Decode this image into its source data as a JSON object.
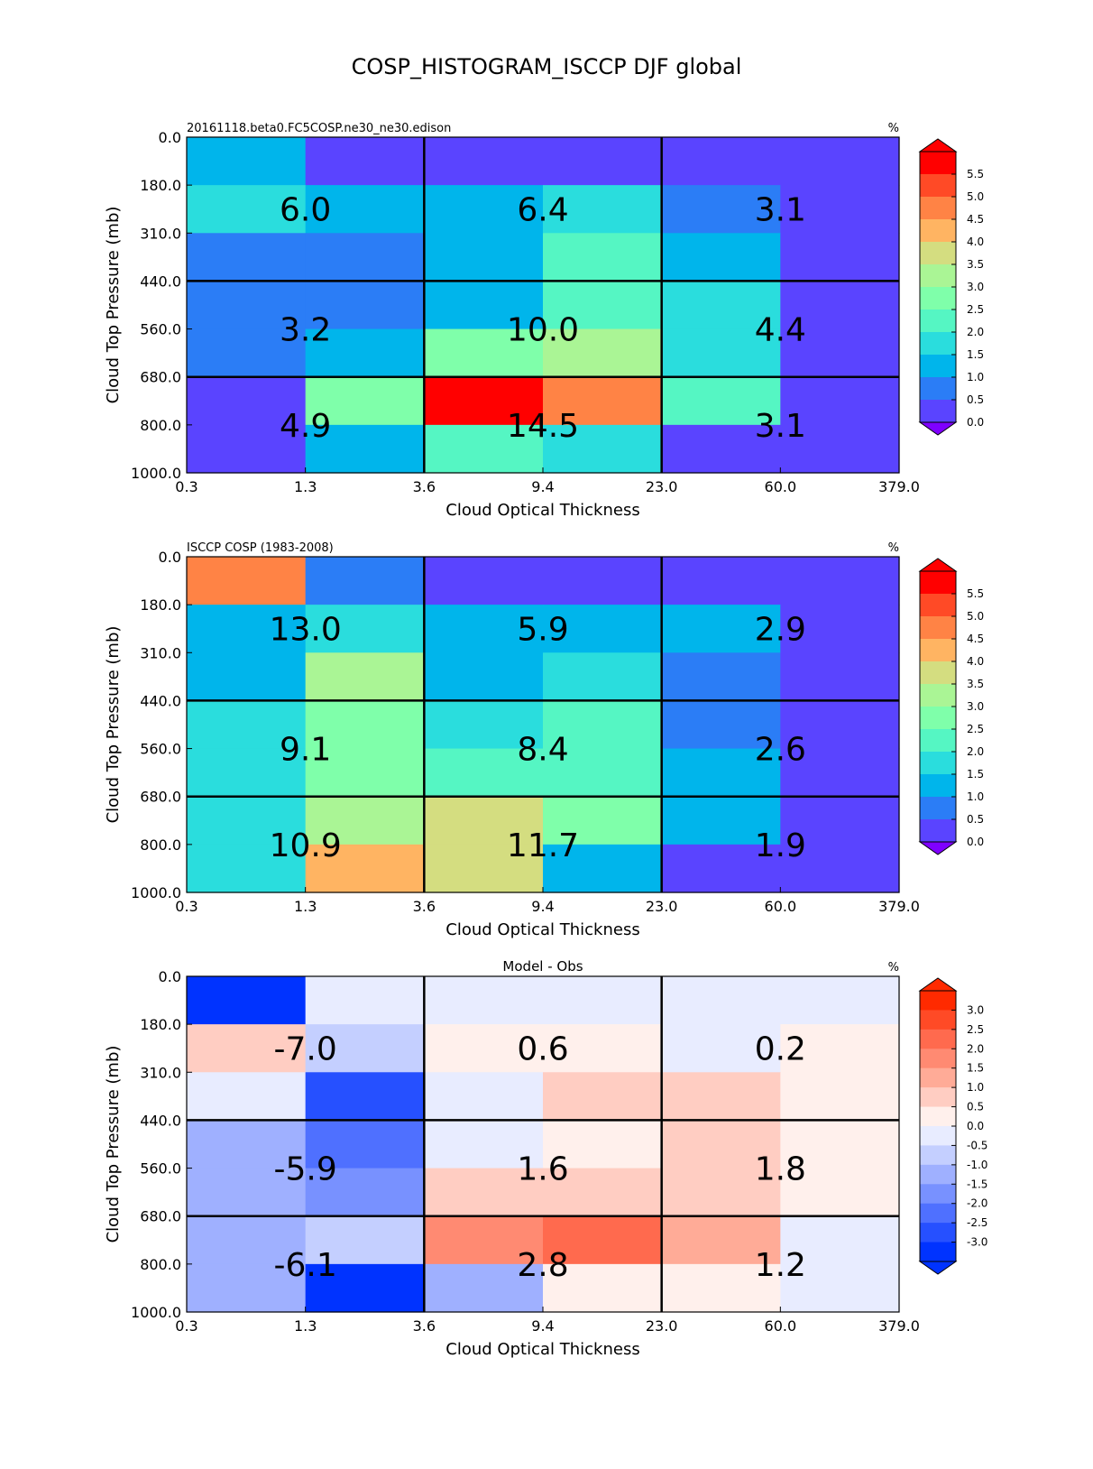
{
  "figure": {
    "title": "COSP_HISTOGRAM_ISCCP DJF global"
  },
  "chart_data": [
    {
      "type": "heatmap",
      "title_left": "20161118.beta0.FC5COSP.ne30_ne30.edison",
      "title_center": "",
      "units": "%",
      "xlabel": "Cloud Optical Thickness",
      "ylabel": "Cloud Top Pressure (mb)",
      "x_ticks": [
        "0.3",
        "1.3",
        "3.6",
        "9.4",
        "23.0",
        "60.0",
        "379.0"
      ],
      "y_ticks": [
        "0.0",
        "180.0",
        "310.0",
        "440.0",
        "560.0",
        "680.0",
        "800.0",
        "1000.0"
      ],
      "colorbar": {
        "ticks": [
          "5.5",
          "5.0",
          "4.5",
          "4.0",
          "3.5",
          "3.0",
          "2.5",
          "2.0",
          "1.5",
          "1.0",
          "0.5",
          "0.0"
        ],
        "colors_top_to_bottom": [
          "#ff0000",
          "#ff4a26",
          "#ff8345",
          "#ffb462",
          "#d4dd80",
          "#aaf595",
          "#7fffaa",
          "#55f6c3",
          "#2adddd",
          "#00b5eb",
          "#2b7df6",
          "#5a44ff"
        ],
        "over_color": "#ff0000",
        "under_color": "#7f00ff"
      },
      "cells": [
        [
          "#00b5eb",
          "#5a44ff",
          "#5a44ff",
          "#5a44ff",
          "#5a44ff",
          "#5a44ff"
        ],
        [
          "#2adddd",
          "#00b5eb",
          "#00b5eb",
          "#2adddd",
          "#2b7df6",
          "#5a44ff"
        ],
        [
          "#2b7df6",
          "#2b7df6",
          "#00b5eb",
          "#55f6c3",
          "#00b5eb",
          "#5a44ff"
        ],
        [
          "#2b7df6",
          "#2b7df6",
          "#00b5eb",
          "#55f6c3",
          "#2adddd",
          "#5a44ff"
        ],
        [
          "#2b7df6",
          "#00b5eb",
          "#7fffaa",
          "#aaf595",
          "#2adddd",
          "#5a44ff"
        ],
        [
          "#5a44ff",
          "#7fffaa",
          "#ff0000",
          "#ff8345",
          "#55f6c3",
          "#5a44ff"
        ],
        [
          "#5a44ff",
          "#00b5eb",
          "#55f6c3",
          "#2adddd",
          "#5a44ff",
          "#5a44ff"
        ]
      ],
      "annotations": [
        [
          "6.0",
          "6.4",
          "3.1"
        ],
        [
          "3.2",
          "10.0",
          "4.4"
        ],
        [
          "4.9",
          "14.5",
          "3.1"
        ]
      ]
    },
    {
      "type": "heatmap",
      "title_left": "ISCCP COSP (1983-2008)",
      "title_center": "",
      "units": "%",
      "xlabel": "Cloud Optical Thickness",
      "ylabel": "Cloud Top Pressure (mb)",
      "x_ticks": [
        "0.3",
        "1.3",
        "3.6",
        "9.4",
        "23.0",
        "60.0",
        "379.0"
      ],
      "y_ticks": [
        "0.0",
        "180.0",
        "310.0",
        "440.0",
        "560.0",
        "680.0",
        "800.0",
        "1000.0"
      ],
      "colorbar": {
        "ticks": [
          "5.5",
          "5.0",
          "4.5",
          "4.0",
          "3.5",
          "3.0",
          "2.5",
          "2.0",
          "1.5",
          "1.0",
          "0.5",
          "0.0"
        ],
        "colors_top_to_bottom": [
          "#ff0000",
          "#ff4a26",
          "#ff8345",
          "#ffb462",
          "#d4dd80",
          "#aaf595",
          "#7fffaa",
          "#55f6c3",
          "#2adddd",
          "#00b5eb",
          "#2b7df6",
          "#5a44ff"
        ],
        "over_color": "#ff0000",
        "under_color": "#7f00ff"
      },
      "cells": [
        [
          "#ff8345",
          "#2b7df6",
          "#5a44ff",
          "#5a44ff",
          "#5a44ff",
          "#5a44ff"
        ],
        [
          "#00b5eb",
          "#2adddd",
          "#00b5eb",
          "#00b5eb",
          "#00b5eb",
          "#5a44ff"
        ],
        [
          "#00b5eb",
          "#aaf595",
          "#00b5eb",
          "#2adddd",
          "#2b7df6",
          "#5a44ff"
        ],
        [
          "#2adddd",
          "#7fffaa",
          "#2adddd",
          "#55f6c3",
          "#2b7df6",
          "#5a44ff"
        ],
        [
          "#2adddd",
          "#7fffaa",
          "#55f6c3",
          "#55f6c3",
          "#00b5eb",
          "#5a44ff"
        ],
        [
          "#2adddd",
          "#aaf595",
          "#d4dd80",
          "#7fffaa",
          "#00b5eb",
          "#5a44ff"
        ],
        [
          "#2adddd",
          "#ffb462",
          "#d4dd80",
          "#00b5eb",
          "#5a44ff",
          "#5a44ff"
        ]
      ],
      "annotations": [
        [
          "13.0",
          "5.9",
          "2.9"
        ],
        [
          "9.1",
          "8.4",
          "2.6"
        ],
        [
          "10.9",
          "11.7",
          "1.9"
        ]
      ]
    },
    {
      "type": "heatmap",
      "title_left": "",
      "title_center": "Model - Obs",
      "units": "%",
      "xlabel": "Cloud Optical Thickness",
      "ylabel": "Cloud Top Pressure (mb)",
      "x_ticks": [
        "0.3",
        "1.3",
        "3.6",
        "9.4",
        "23.0",
        "60.0",
        "379.0"
      ],
      "y_ticks": [
        "0.0",
        "180.0",
        "310.0",
        "440.0",
        "560.0",
        "680.0",
        "800.0",
        "1000.0"
      ],
      "colorbar": {
        "ticks": [
          "3.0",
          "2.5",
          "2.0",
          "1.5",
          "1.0",
          "0.5",
          "0.0",
          "-0.5",
          "-1.0",
          "-1.5",
          "-2.0",
          "-2.5",
          "-3.0"
        ],
        "colors_top_to_bottom": [
          "#ff2a00",
          "#ff4a26",
          "#ff6a4e",
          "#ff8a72",
          "#ffab97",
          "#ffcdc2",
          "#fff0ec",
          "#e8ecff",
          "#c4cfff",
          "#9fb0ff",
          "#7891ff",
          "#4f70ff",
          "#2650ff",
          "#0033ff"
        ],
        "over_color": "#ff2a00",
        "under_color": "#0033ff"
      },
      "cells": [
        [
          "#0033ff",
          "#e8ecff",
          "#e8ecff",
          "#e8ecff",
          "#e8ecff",
          "#e8ecff"
        ],
        [
          "#ffcdc2",
          "#c4cfff",
          "#fff0ec",
          "#fff0ec",
          "#e8ecff",
          "#fff0ec"
        ],
        [
          "#e8ecff",
          "#2650ff",
          "#e8ecff",
          "#ffcdc2",
          "#ffcdc2",
          "#fff0ec"
        ],
        [
          "#9fb0ff",
          "#4f70ff",
          "#e8ecff",
          "#fff0ec",
          "#ffcdc2",
          "#fff0ec"
        ],
        [
          "#9fb0ff",
          "#7891ff",
          "#ffcdc2",
          "#ffcdc2",
          "#ffcdc2",
          "#fff0ec"
        ],
        [
          "#9fb0ff",
          "#c4cfff",
          "#ff8a72",
          "#ff6a4e",
          "#ffab97",
          "#e8ecff"
        ],
        [
          "#9fb0ff",
          "#0033ff",
          "#9fb0ff",
          "#fff0ec",
          "#fff0ec",
          "#e8ecff"
        ]
      ],
      "annotations": [
        [
          "-7.0",
          "0.6",
          "0.2"
        ],
        [
          "-5.9",
          "1.6",
          "1.8"
        ],
        [
          "-6.1",
          "2.8",
          "1.2"
        ]
      ]
    }
  ]
}
